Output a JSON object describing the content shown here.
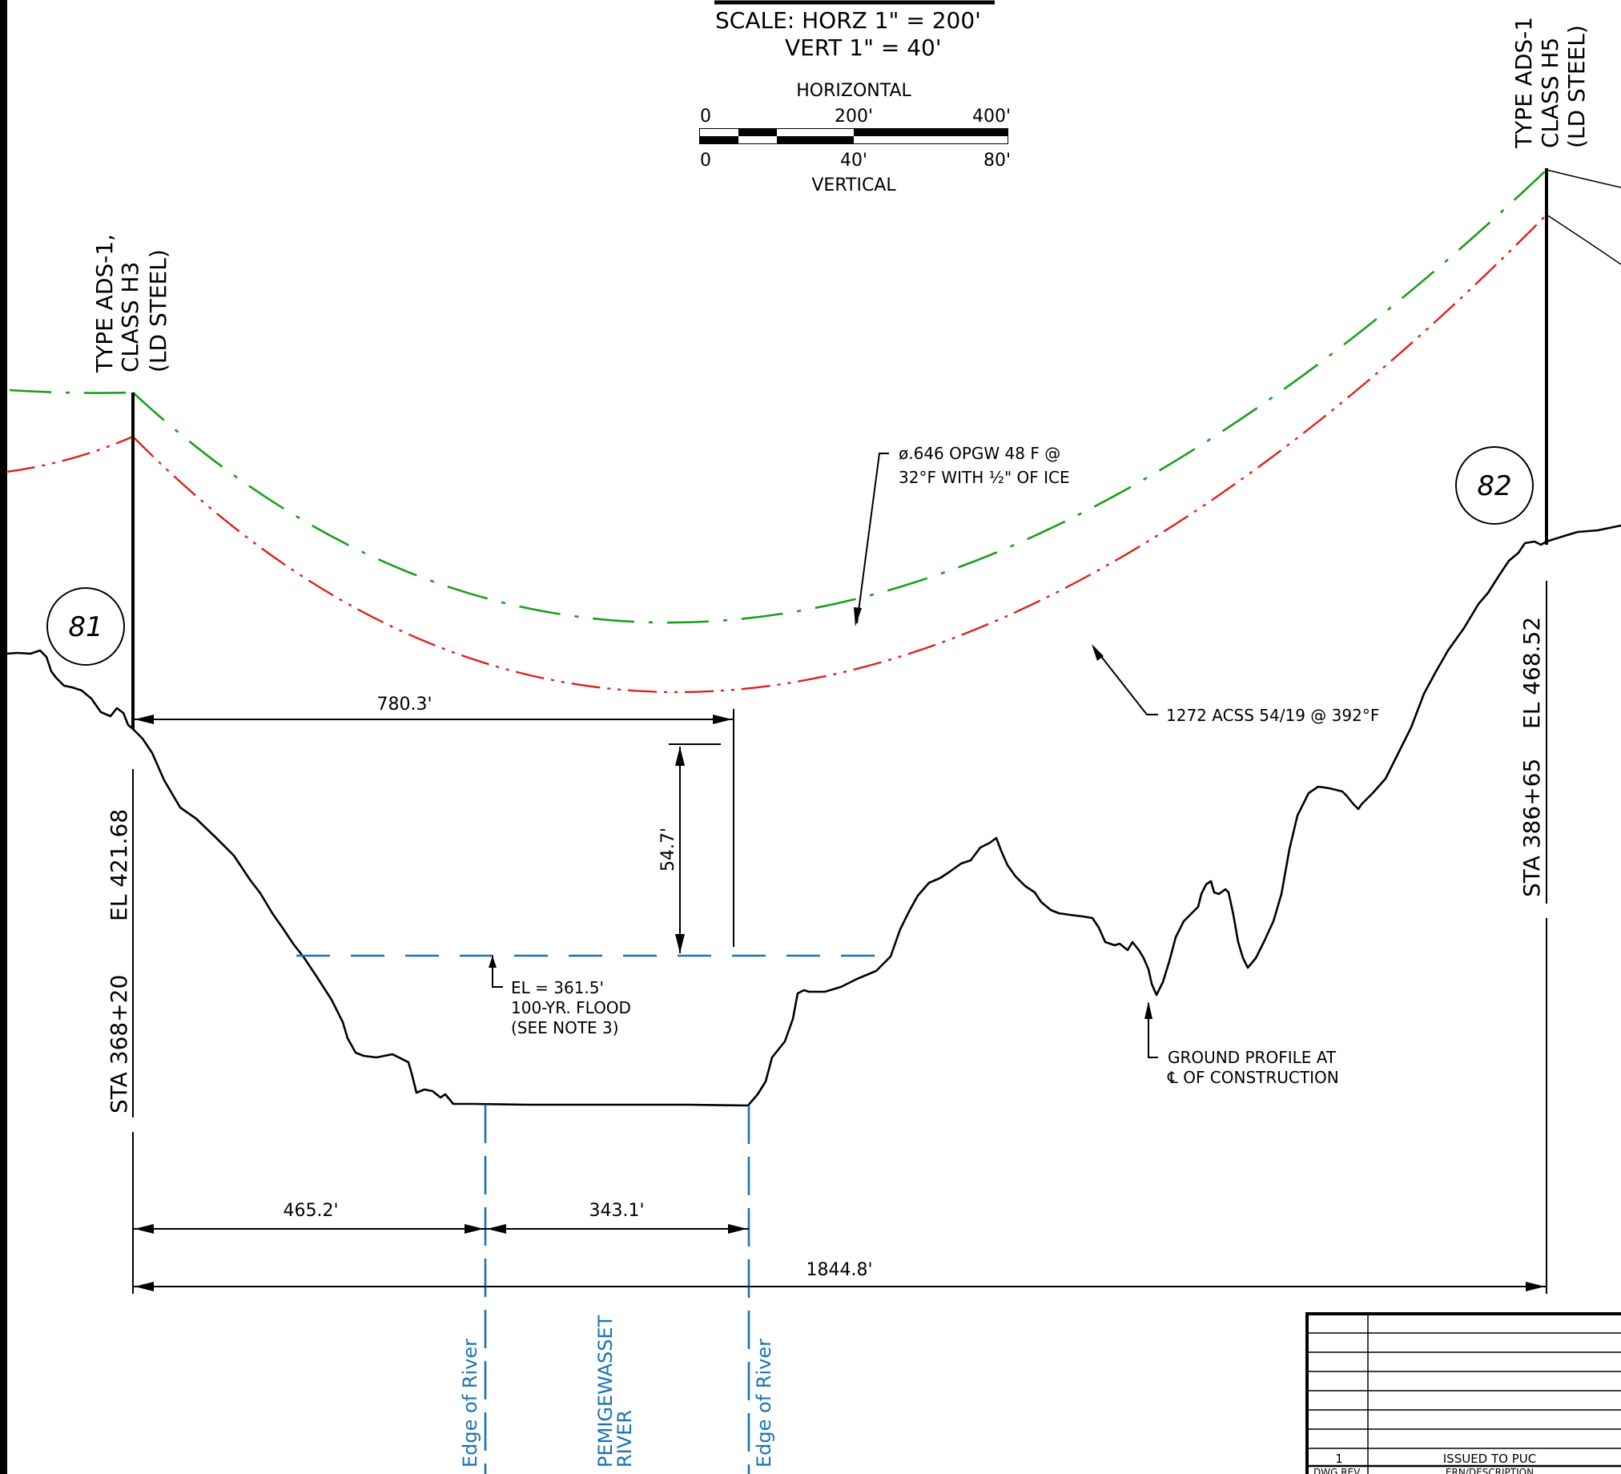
{
  "scale": {
    "line1": "SCALE:  HORZ  1\"  =  200'",
    "line2": "VERT  1\"  =  40'",
    "horizontal_label": "HORIZONTAL",
    "vertical_label": "VERTICAL",
    "h_ticks": [
      "0",
      "200'",
      "400'"
    ],
    "v_ticks": [
      "0",
      "40'",
      "80'"
    ]
  },
  "structures": [
    {
      "number": "81",
      "type": "TYPE  ADS-1,",
      "class": "CLASS  H3",
      "material": "(LD  STEEL)",
      "station": "STA  368+20",
      "elevation": "EL  421.68"
    },
    {
      "number": "82",
      "type": "TYPE  ADS-1",
      "class": "CLASS  H5",
      "material": "(LD  STEEL)",
      "station": "STA  386+65",
      "elevation": "EL  468.52"
    }
  ],
  "notes": {
    "opgw_line1": "ø.646  OPGW  48  F  @",
    "opgw_line2": "32°F  WITH  ½\"  OF  ICE",
    "acss": "1272  ACSS  54/19  @  392°F",
    "flood_line1": "EL  =  361.5'",
    "flood_line2": "100-YR.  FLOOD",
    "flood_line3": "(SEE  NOTE  3)",
    "ground_line1": "GROUND  PROFILE  AT",
    "ground_line2": "℄  OF  CONSTRUCTION"
  },
  "dimensions": {
    "to_low_point": "780.3'",
    "clearance": "54.7'",
    "to_river_edge": "465.2'",
    "river_width": "343.1'",
    "span_length": "1844.8'"
  },
  "river_labels": {
    "left_edge": "Edge  of  River",
    "right_edge": "Edge  of  River",
    "name_line1": "PEMIGEWASSET",
    "name_line2": "RIVER"
  },
  "revision_block": {
    "rev_number": "1",
    "description": "ISSUED  TO  PUC",
    "footer_left": "DWG REV",
    "footer_right": "ERN/DESCRIPTION"
  },
  "colors": {
    "opgw": "#1a9e1a",
    "acss": "#e0201a",
    "water": "#1a73b4",
    "ink": "#000000"
  }
}
